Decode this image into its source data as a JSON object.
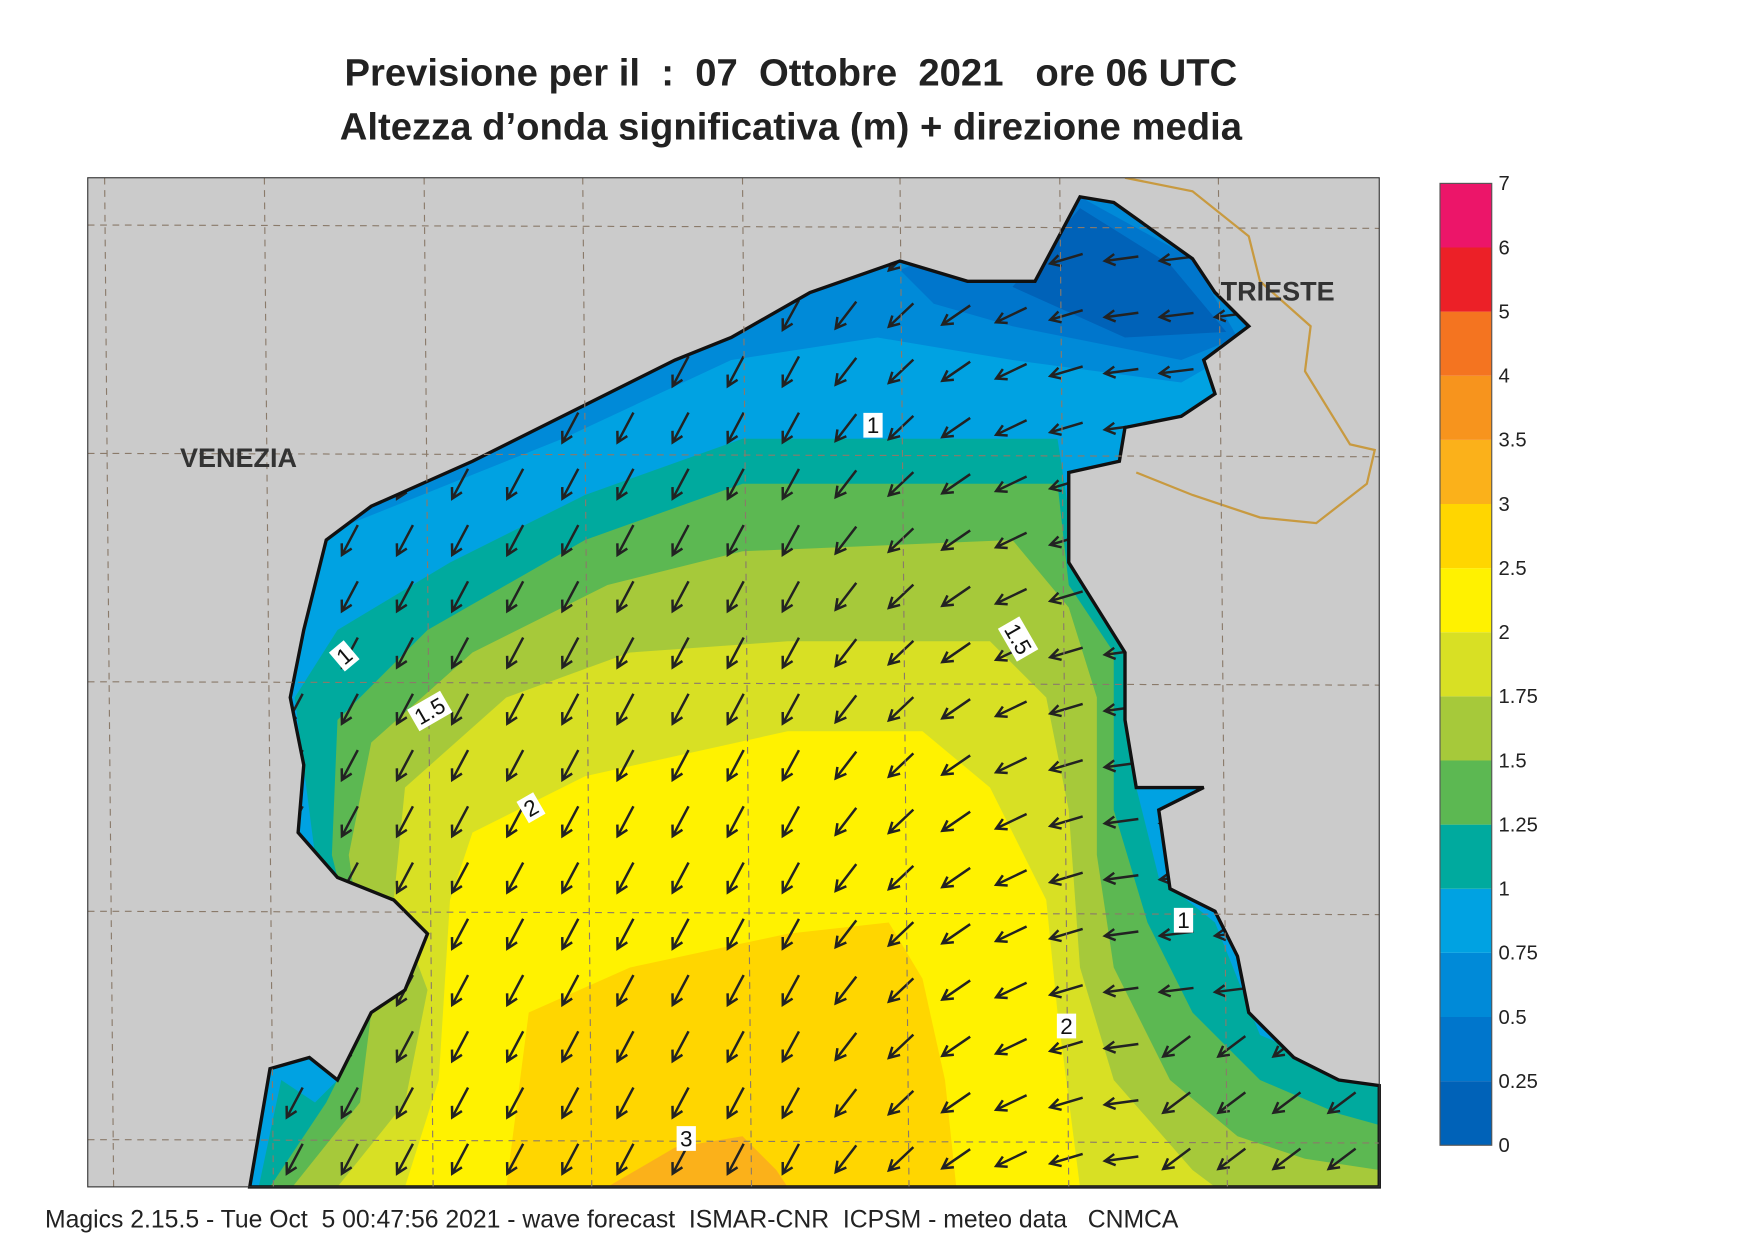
{
  "header": {
    "title": "Previsione per il  :  07  Ottobre  2021   ore 06 UTC",
    "subtitle": "Altezza d’onda significativa (m) + direzione media"
  },
  "map": {
    "places": [
      "VENEZIA",
      "TRIESTE"
    ],
    "contour_labels": [
      "1",
      "1",
      "1",
      "1.5",
      "1.5",
      "2",
      "2",
      "3"
    ]
  },
  "colorbar": {
    "labels": [
      "0",
      "0.25",
      "0.5",
      "0.75",
      "1",
      "1.25",
      "1.5",
      "1.75",
      "2",
      "2.5",
      "3",
      "3.5",
      "4",
      "5",
      "6",
      "7"
    ],
    "colors": [
      "#0062b8",
      "#0076cc",
      "#008ad8",
      "#00a2e2",
      "#00aa9e",
      "#5cb852",
      "#a6c93a",
      "#d8e024",
      "#fff200",
      "#ffd600",
      "#fbb11a",
      "#f7941d",
      "#f47420",
      "#ec2027",
      "#ec1569"
    ]
  },
  "footer": "Magics 2.15.5 - Tue Oct  5 00:47:56 2021 - wave forecast  ISMAR-CNR  ICPSM - meteo data   CNMCA"
}
